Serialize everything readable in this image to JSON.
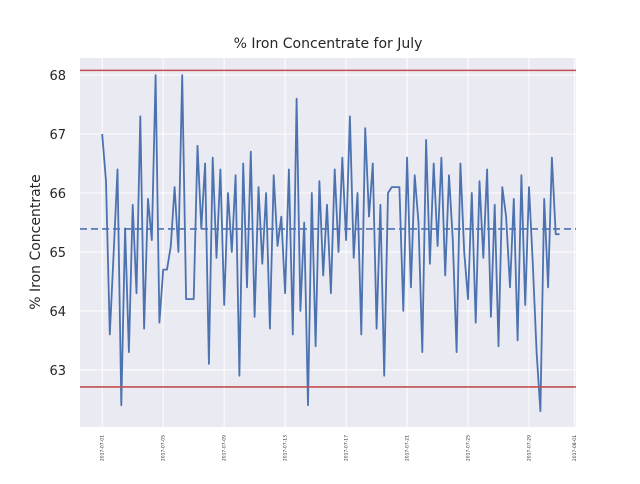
{
  "chart_data": {
    "type": "line",
    "title": "% Iron Concentrate for July",
    "y_label": "% Iron Concentrate",
    "color": "#4c72b0",
    "grid": true,
    "x": [
      "2017-07-01T00:00",
      "2017-07-01T06:00",
      "2017-07-01T12:00",
      "2017-07-01T18:00",
      "2017-07-02T00:00",
      "2017-07-02T06:00",
      "2017-07-02T12:00",
      "2017-07-02T18:00",
      "2017-07-03T00:00",
      "2017-07-03T06:00",
      "2017-07-03T12:00",
      "2017-07-03T18:00",
      "2017-07-04T00:00",
      "2017-07-04T06:00",
      "2017-07-04T12:00",
      "2017-07-04T18:00",
      "2017-07-05T00:00",
      "2017-07-05T06:00",
      "2017-07-05T12:00",
      "2017-07-05T18:00",
      "2017-07-06T00:00",
      "2017-07-06T06:00",
      "2017-07-06T12:00",
      "2017-07-06T18:00",
      "2017-07-07T00:00",
      "2017-07-07T06:00",
      "2017-07-07T12:00",
      "2017-07-07T18:00",
      "2017-07-08T00:00",
      "2017-07-08T06:00",
      "2017-07-08T12:00",
      "2017-07-08T18:00",
      "2017-07-09T00:00",
      "2017-07-09T06:00",
      "2017-07-09T12:00",
      "2017-07-09T18:00",
      "2017-07-10T00:00",
      "2017-07-10T06:00",
      "2017-07-10T12:00",
      "2017-07-10T18:00",
      "2017-07-11T00:00",
      "2017-07-11T06:00",
      "2017-07-11T12:00",
      "2017-07-11T18:00",
      "2017-07-12T00:00",
      "2017-07-12T06:00",
      "2017-07-12T12:00",
      "2017-07-12T18:00",
      "2017-07-13T00:00",
      "2017-07-13T06:00",
      "2017-07-13T12:00",
      "2017-07-13T18:00",
      "2017-07-14T00:00",
      "2017-07-14T06:00",
      "2017-07-14T12:00",
      "2017-07-14T18:00",
      "2017-07-15T00:00",
      "2017-07-15T06:00",
      "2017-07-15T12:00",
      "2017-07-15T18:00",
      "2017-07-16T00:00",
      "2017-07-16T06:00",
      "2017-07-16T12:00",
      "2017-07-16T18:00",
      "2017-07-17T00:00",
      "2017-07-17T06:00",
      "2017-07-17T12:00",
      "2017-07-17T18:00",
      "2017-07-18T00:00",
      "2017-07-18T06:00",
      "2017-07-18T12:00",
      "2017-07-18T18:00",
      "2017-07-19T00:00",
      "2017-07-19T06:00",
      "2017-07-19T12:00",
      "2017-07-19T18:00",
      "2017-07-20T00:00",
      "2017-07-20T06:00",
      "2017-07-20T12:00",
      "2017-07-20T18:00",
      "2017-07-21T00:00",
      "2017-07-21T06:00",
      "2017-07-21T12:00",
      "2017-07-21T18:00",
      "2017-07-22T00:00",
      "2017-07-22T06:00",
      "2017-07-22T12:00",
      "2017-07-22T18:00",
      "2017-07-23T00:00",
      "2017-07-23T06:00",
      "2017-07-23T12:00",
      "2017-07-23T18:00",
      "2017-07-24T00:00",
      "2017-07-24T06:00",
      "2017-07-24T12:00",
      "2017-07-24T18:00",
      "2017-07-25T00:00",
      "2017-07-25T06:00",
      "2017-07-25T12:00",
      "2017-07-25T18:00",
      "2017-07-26T00:00",
      "2017-07-26T06:00",
      "2017-07-26T12:00",
      "2017-07-26T18:00",
      "2017-07-27T00:00",
      "2017-07-27T06:00",
      "2017-07-27T12:00",
      "2017-07-27T18:00",
      "2017-07-28T00:00",
      "2017-07-28T06:00",
      "2017-07-28T12:00",
      "2017-07-28T18:00",
      "2017-07-29T00:00",
      "2017-07-29T06:00",
      "2017-07-29T12:00",
      "2017-07-29T18:00",
      "2017-07-30T00:00",
      "2017-07-30T06:00",
      "2017-07-30T12:00",
      "2017-07-30T18:00",
      "2017-07-31T00:00"
    ],
    "values": [
      67.0,
      66.2,
      63.6,
      65.0,
      66.4,
      62.4,
      65.4,
      63.3,
      65.8,
      64.3,
      67.3,
      63.7,
      65.9,
      65.2,
      68.0,
      63.8,
      64.7,
      64.7,
      65.1,
      66.1,
      65.0,
      68.0,
      64.2,
      64.2,
      64.2,
      66.8,
      65.4,
      66.5,
      63.1,
      66.6,
      64.9,
      66.4,
      64.1,
      66.0,
      65.0,
      66.3,
      62.9,
      66.5,
      64.4,
      66.7,
      63.9,
      66.1,
      64.8,
      66.0,
      63.7,
      66.3,
      65.1,
      65.6,
      64.3,
      66.4,
      63.6,
      67.6,
      64.0,
      65.5,
      62.4,
      66.0,
      63.4,
      66.2,
      64.6,
      65.8,
      64.3,
      66.4,
      65.0,
      66.6,
      65.2,
      67.3,
      64.9,
      66.0,
      63.6,
      67.1,
      65.6,
      66.5,
      63.7,
      65.8,
      62.9,
      66.0,
      66.1,
      66.1,
      66.1,
      64.0,
      66.6,
      64.4,
      66.3,
      65.5,
      63.3,
      66.9,
      64.8,
      66.5,
      65.1,
      66.6,
      64.6,
      66.3,
      65.2,
      63.3,
      66.5,
      65.0,
      64.2,
      66.0,
      63.8,
      66.2,
      64.9,
      66.4,
      63.9,
      65.8,
      63.4,
      66.1,
      65.6,
      64.4,
      65.9,
      63.5,
      66.3,
      64.1,
      66.1,
      64.8,
      63.3,
      62.3,
      65.9,
      64.4,
      66.6,
      65.3,
      65.3
    ],
    "xlim": [
      "2017-06-29T13:00",
      "2017-08-01T02:00"
    ],
    "xticks": [
      "2017-07-01",
      "2017-07-05",
      "2017-07-09",
      "2017-07-13",
      "2017-07-17",
      "2017-07-21",
      "2017-07-25",
      "2017-07-29",
      "2017-08-01"
    ],
    "ylim": [
      62.03,
      68.29
    ],
    "yticks": [
      63,
      64,
      65,
      66,
      67,
      68
    ],
    "hlines": [
      {
        "value": 68.08,
        "color": "#c44e52",
        "style": "solid"
      },
      {
        "value": 65.39,
        "color": "#4c72b0",
        "style": "dashed"
      },
      {
        "value": 62.71,
        "color": "#c44e52",
        "style": "solid"
      }
    ]
  }
}
